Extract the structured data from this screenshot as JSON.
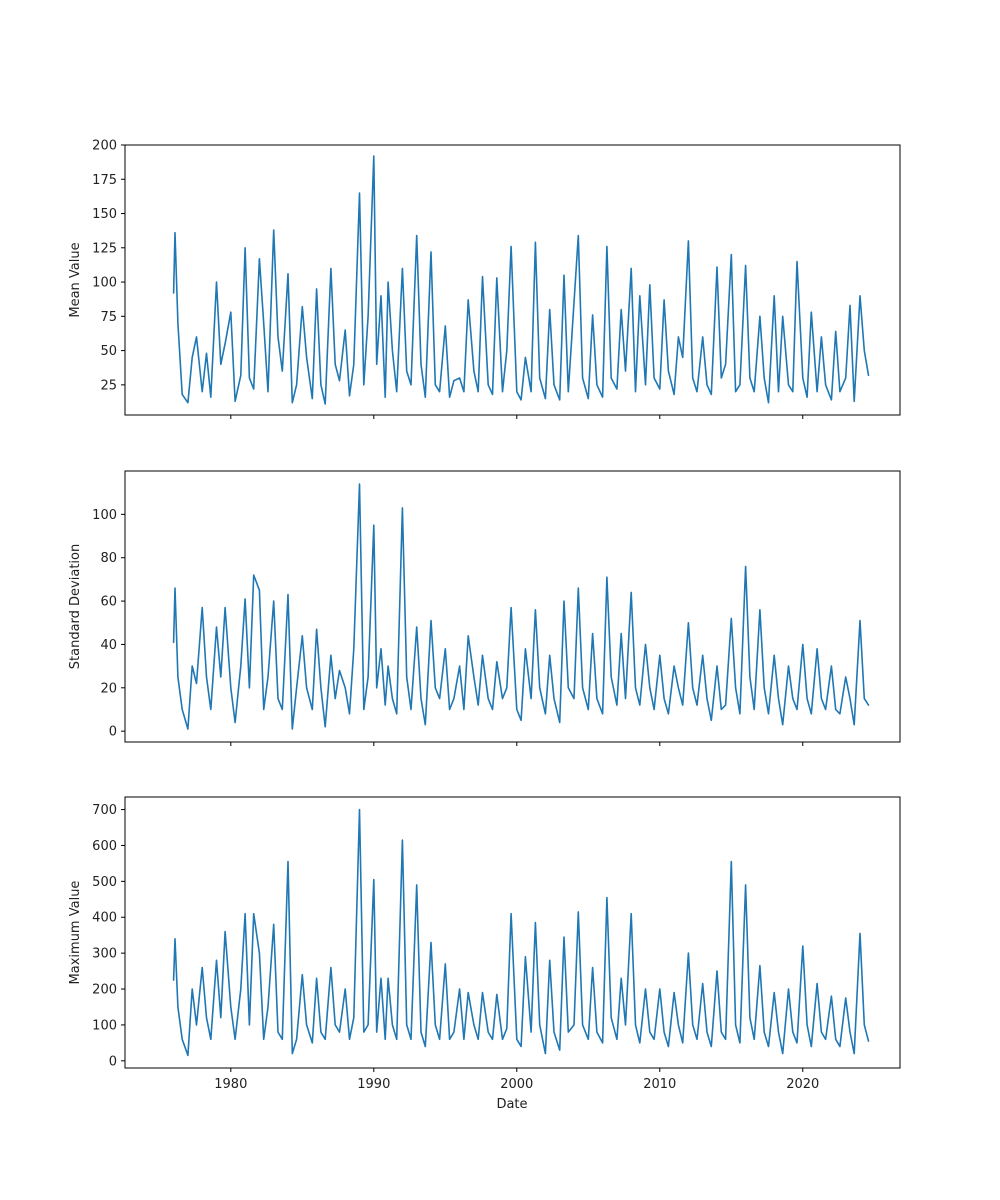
{
  "figure": {
    "xlabel": "Date",
    "line_color": "#1f77b4",
    "grid": false,
    "shared_x": true
  },
  "chart_data": [
    {
      "type": "line",
      "title": "",
      "xlabel": "",
      "ylabel": "Mean Value",
      "xlim": [
        1972.6,
        2026.8
      ],
      "ylim": [
        3,
        200
      ],
      "xticks": [
        1980,
        1990,
        2000,
        2010,
        2020
      ],
      "yticks": [
        25,
        50,
        75,
        100,
        125,
        150,
        175,
        200
      ],
      "series": [
        {
          "x": [
            1976,
            1976.1,
            1976.3,
            1976.6,
            1977.0,
            1977.3,
            1977.6,
            1978.0,
            1978.3,
            1978.6,
            1979.0,
            1979.3,
            1979.6,
            1980.0,
            1980.3,
            1980.7,
            1981.0,
            1981.3,
            1981.6,
            1982.0,
            1982.3,
            1982.6,
            1983.0,
            1983.3,
            1983.6,
            1984.0,
            1984.3,
            1984.6,
            1985.0,
            1985.3,
            1985.7,
            1986.0,
            1986.3,
            1986.6,
            1987.0,
            1987.3,
            1987.6,
            1988.0,
            1988.3,
            1988.6,
            1989.0,
            1989.3,
            1989.6,
            1990.0,
            1990.2,
            1990.5,
            1990.8,
            1991.0,
            1991.3,
            1991.6,
            1992.0,
            1992.3,
            1992.6,
            1993.0,
            1993.3,
            1993.6,
            1994.0,
            1994.3,
            1994.6,
            1995.0,
            1995.3,
            1995.6,
            1996.0,
            1996.3,
            1996.6,
            1997.0,
            1997.3,
            1997.6,
            1998.0,
            1998.3,
            1998.6,
            1999.0,
            1999.3,
            1999.6,
            2000.0,
            2000.3,
            2000.6,
            2001.0,
            2001.3,
            2001.6,
            2002.0,
            2002.3,
            2002.6,
            2003.0,
            2003.3,
            2003.6,
            2004.0,
            2004.3,
            2004.6,
            2005.0,
            2005.3,
            2005.6,
            2006.0,
            2006.3,
            2006.6,
            2007.0,
            2007.3,
            2007.6,
            2008.0,
            2008.3,
            2008.6,
            2009.0,
            2009.3,
            2009.6,
            2010.0,
            2010.3,
            2010.6,
            2011.0,
            2011.3,
            2011.6,
            2012.0,
            2012.3,
            2012.6,
            2013.0,
            2013.3,
            2013.6,
            2014.0,
            2014.3,
            2014.6,
            2015.0,
            2015.3,
            2015.6,
            2016.0,
            2016.3,
            2016.6,
            2017.0,
            2017.3,
            2017.6,
            2018.0,
            2018.3,
            2018.6,
            2019.0,
            2019.3,
            2019.6,
            2020.0,
            2020.3,
            2020.6,
            2021.0,
            2021.3,
            2021.6,
            2022.0,
            2022.3,
            2022.6,
            2023.0,
            2023.3,
            2023.6,
            2024.0,
            2024.3,
            2024.6
          ],
          "y": [
            92,
            136,
            70,
            18,
            12,
            45,
            60,
            20,
            48,
            16,
            100,
            40,
            55,
            78,
            13,
            32,
            125,
            30,
            22,
            117,
            70,
            20,
            138,
            60,
            35,
            106,
            12,
            25,
            82,
            45,
            15,
            95,
            25,
            11,
            110,
            40,
            28,
            65,
            17,
            40,
            165,
            25,
            75,
            192,
            40,
            90,
            16,
            100,
            50,
            20,
            110,
            35,
            25,
            134,
            40,
            16,
            122,
            25,
            20,
            68,
            16,
            28,
            30,
            20,
            87,
            35,
            20,
            104,
            25,
            18,
            103,
            20,
            50,
            126,
            20,
            14,
            45,
            20,
            129,
            30,
            15,
            80,
            25,
            14,
            105,
            20,
            85,
            134,
            30,
            15,
            76,
            25,
            16,
            126,
            30,
            22,
            80,
            35,
            110,
            20,
            90,
            25,
            98,
            30,
            22,
            87,
            35,
            18,
            60,
            45,
            130,
            30,
            20,
            60,
            25,
            18,
            111,
            30,
            40,
            120,
            20,
            25,
            112,
            30,
            20,
            75,
            30,
            12,
            90,
            20,
            75,
            25,
            20,
            115,
            30,
            16,
            78,
            20,
            60,
            25,
            14,
            64,
            20,
            30,
            83,
            13,
            90,
            50,
            32
          ]
        }
      ]
    },
    {
      "type": "line",
      "title": "",
      "xlabel": "",
      "ylabel": "Standard Deviation",
      "xlim": [
        1972.6,
        2026.8
      ],
      "ylim": [
        -5,
        120
      ],
      "xticks": [
        1980,
        1990,
        2000,
        2010,
        2020
      ],
      "yticks": [
        0,
        20,
        40,
        60,
        80,
        100
      ],
      "series": [
        {
          "x": [
            1976,
            1976.1,
            1976.3,
            1976.6,
            1977.0,
            1977.3,
            1977.6,
            1978.0,
            1978.3,
            1978.6,
            1979.0,
            1979.3,
            1979.6,
            1980.0,
            1980.3,
            1980.7,
            1981.0,
            1981.3,
            1981.6,
            1982.0,
            1982.3,
            1982.6,
            1983.0,
            1983.3,
            1983.6,
            1984.0,
            1984.3,
            1984.6,
            1985.0,
            1985.3,
            1985.7,
            1986.0,
            1986.3,
            1986.6,
            1987.0,
            1987.3,
            1987.6,
            1988.0,
            1988.3,
            1988.6,
            1989.0,
            1989.3,
            1989.6,
            1990.0,
            1990.2,
            1990.5,
            1990.8,
            1991.0,
            1991.3,
            1991.6,
            1992.0,
            1992.3,
            1992.6,
            1993.0,
            1993.3,
            1993.6,
            1994.0,
            1994.3,
            1994.6,
            1995.0,
            1995.3,
            1995.6,
            1996.0,
            1996.3,
            1996.6,
            1997.0,
            1997.3,
            1997.6,
            1998.0,
            1998.3,
            1998.6,
            1999.0,
            1999.3,
            1999.6,
            2000.0,
            2000.3,
            2000.6,
            2001.0,
            2001.3,
            2001.6,
            2002.0,
            2002.3,
            2002.6,
            2003.0,
            2003.3,
            2003.6,
            2004.0,
            2004.3,
            2004.6,
            2005.0,
            2005.3,
            2005.6,
            2006.0,
            2006.3,
            2006.6,
            2007.0,
            2007.3,
            2007.6,
            2008.0,
            2008.3,
            2008.6,
            2009.0,
            2009.3,
            2009.6,
            2010.0,
            2010.3,
            2010.6,
            2011.0,
            2011.3,
            2011.6,
            2012.0,
            2012.3,
            2012.6,
            2013.0,
            2013.3,
            2013.6,
            2014.0,
            2014.3,
            2014.6,
            2015.0,
            2015.3,
            2015.6,
            2016.0,
            2016.3,
            2016.6,
            2017.0,
            2017.3,
            2017.6,
            2018.0,
            2018.3,
            2018.6,
            2019.0,
            2019.3,
            2019.6,
            2020.0,
            2020.3,
            2020.6,
            2021.0,
            2021.3,
            2021.6,
            2022.0,
            2022.3,
            2022.6,
            2023.0,
            2023.3,
            2023.6,
            2024.0,
            2024.3,
            2024.6
          ],
          "y": [
            41,
            66,
            25,
            10,
            1,
            30,
            22,
            57,
            25,
            10,
            48,
            25,
            57,
            20,
            4,
            30,
            61,
            20,
            72,
            65,
            10,
            25,
            60,
            15,
            10,
            63,
            1,
            20,
            44,
            20,
            10,
            47,
            20,
            2,
            35,
            15,
            28,
            20,
            8,
            38,
            114,
            10,
            25,
            95,
            20,
            38,
            12,
            30,
            15,
            8,
            103,
            25,
            10,
            48,
            15,
            3,
            51,
            20,
            15,
            38,
            10,
            15,
            30,
            10,
            44,
            25,
            12,
            35,
            15,
            10,
            32,
            15,
            20,
            57,
            10,
            5,
            38,
            15,
            56,
            20,
            8,
            35,
            15,
            4,
            60,
            20,
            15,
            66,
            20,
            10,
            45,
            15,
            8,
            71,
            25,
            12,
            45,
            15,
            64,
            20,
            12,
            40,
            20,
            10,
            35,
            15,
            8,
            30,
            20,
            12,
            50,
            20,
            12,
            35,
            15,
            5,
            30,
            10,
            12,
            52,
            20,
            8,
            76,
            25,
            10,
            56,
            20,
            8,
            35,
            15,
            3,
            30,
            15,
            10,
            40,
            15,
            8,
            38,
            15,
            10,
            30,
            10,
            8,
            25,
            15,
            3,
            51,
            15,
            12
          ]
        }
      ]
    },
    {
      "type": "line",
      "title": "",
      "xlabel": "Date",
      "ylabel": "Maximum Value",
      "xlim": [
        1972.6,
        2026.8
      ],
      "ylim": [
        -20,
        735
      ],
      "xticks": [
        1980,
        1990,
        2000,
        2010,
        2020
      ],
      "yticks": [
        0,
        100,
        200,
        300,
        400,
        500,
        600,
        700
      ],
      "series": [
        {
          "x": [
            1976,
            1976.1,
            1976.3,
            1976.6,
            1977.0,
            1977.3,
            1977.6,
            1978.0,
            1978.3,
            1978.6,
            1979.0,
            1979.3,
            1979.6,
            1980.0,
            1980.3,
            1980.7,
            1981.0,
            1981.3,
            1981.6,
            1982.0,
            1982.3,
            1982.6,
            1983.0,
            1983.3,
            1983.6,
            1984.0,
            1984.3,
            1984.6,
            1985.0,
            1985.3,
            1985.7,
            1986.0,
            1986.3,
            1986.6,
            1987.0,
            1987.3,
            1987.6,
            1988.0,
            1988.3,
            1988.6,
            1989.0,
            1989.3,
            1989.6,
            1990.0,
            1990.2,
            1990.5,
            1990.8,
            1991.0,
            1991.3,
            1991.6,
            1992.0,
            1992.3,
            1992.6,
            1993.0,
            1993.3,
            1993.6,
            1994.0,
            1994.3,
            1994.6,
            1995.0,
            1995.3,
            1995.6,
            1996.0,
            1996.3,
            1996.6,
            1997.0,
            1997.3,
            1997.6,
            1998.0,
            1998.3,
            1998.6,
            1999.0,
            1999.3,
            1999.6,
            2000.0,
            2000.3,
            2000.6,
            2001.0,
            2001.3,
            2001.6,
            2002.0,
            2002.3,
            2002.6,
            2003.0,
            2003.3,
            2003.6,
            2004.0,
            2004.3,
            2004.6,
            2005.0,
            2005.3,
            2005.6,
            2006.0,
            2006.3,
            2006.6,
            2007.0,
            2007.3,
            2007.6,
            2008.0,
            2008.3,
            2008.6,
            2009.0,
            2009.3,
            2009.6,
            2010.0,
            2010.3,
            2010.6,
            2011.0,
            2011.3,
            2011.6,
            2012.0,
            2012.3,
            2012.6,
            2013.0,
            2013.3,
            2013.6,
            2014.0,
            2014.3,
            2014.6,
            2015.0,
            2015.3,
            2015.6,
            2016.0,
            2016.3,
            2016.6,
            2017.0,
            2017.3,
            2017.6,
            2018.0,
            2018.3,
            2018.6,
            2019.0,
            2019.3,
            2019.6,
            2020.0,
            2020.3,
            2020.6,
            2021.0,
            2021.3,
            2021.6,
            2022.0,
            2022.3,
            2022.6,
            2023.0,
            2023.3,
            2023.6,
            2024.0,
            2024.3,
            2024.6
          ],
          "y": [
            225,
            340,
            150,
            60,
            15,
            200,
            100,
            260,
            120,
            60,
            280,
            120,
            360,
            150,
            60,
            200,
            410,
            100,
            410,
            300,
            60,
            150,
            380,
            80,
            60,
            555,
            20,
            60,
            240,
            100,
            50,
            230,
            80,
            60,
            260,
            100,
            80,
            200,
            60,
            120,
            700,
            80,
            100,
            505,
            80,
            230,
            60,
            230,
            100,
            60,
            615,
            100,
            60,
            490,
            80,
            40,
            330,
            100,
            60,
            270,
            60,
            80,
            200,
            60,
            190,
            100,
            60,
            190,
            80,
            60,
            185,
            60,
            90,
            410,
            60,
            40,
            290,
            80,
            385,
            100,
            20,
            280,
            80,
            30,
            345,
            80,
            100,
            415,
            100,
            60,
            260,
            80,
            50,
            455,
            120,
            60,
            230,
            100,
            410,
            100,
            50,
            200,
            80,
            60,
            200,
            80,
            40,
            190,
            100,
            50,
            300,
            100,
            60,
            215,
            80,
            40,
            250,
            80,
            60,
            555,
            100,
            50,
            490,
            120,
            60,
            265,
            80,
            40,
            190,
            80,
            20,
            200,
            80,
            50,
            320,
            100,
            40,
            215,
            80,
            60,
            180,
            60,
            40,
            175,
            80,
            20,
            355,
            100,
            55
          ]
        }
      ]
    }
  ]
}
